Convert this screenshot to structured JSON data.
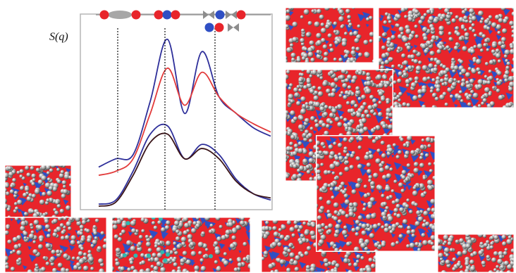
{
  "plot": {
    "ylabel": "S(q)"
  },
  "colors": {
    "red_series": "#e23a3a",
    "blue_series": "#2e2f9a",
    "dark_series": "#3a1418",
    "oxygen": "#e8252b",
    "cation": "#2f4fc4",
    "organic": "#a7a7a7",
    "dopant": "#2fb9b0",
    "frame": "#b5b5b5"
  },
  "chart_data": {
    "type": "line",
    "ylabel": "S(q)",
    "grid": false,
    "peak_markers": [
      "ion-pair-chain",
      "cation-cluster",
      "anion-cation-alternation"
    ],
    "series": [
      {
        "color": "#2e2f9a",
        "x": [
          0,
          1,
          2,
          3,
          4,
          5,
          6,
          7,
          8,
          9,
          10
        ],
        "values": [
          2.0,
          2.4,
          2.6,
          5.2,
          8.2,
          4.6,
          7.6,
          5.4,
          4.6,
          3.9,
          3.5
        ]
      },
      {
        "color": "#e23a3a",
        "x": [
          0,
          1,
          2,
          3,
          4,
          5,
          6,
          7,
          8,
          9,
          10
        ],
        "values": [
          1.6,
          1.8,
          2.4,
          4.6,
          6.8,
          5.0,
          6.6,
          5.4,
          4.6,
          4.1,
          3.7
        ]
      },
      {
        "color": "#2e2f9a",
        "x": [
          0,
          1,
          2,
          3,
          4,
          5,
          6,
          7,
          8,
          9,
          10
        ],
        "values": [
          0.2,
          0.4,
          1.8,
          3.6,
          4.0,
          2.4,
          3.1,
          2.6,
          1.4,
          0.7,
          0.4
        ]
      },
      {
        "color": "#3a1418",
        "x": [
          0,
          1,
          2,
          3,
          4,
          5,
          6,
          7,
          8,
          9,
          10
        ],
        "values": [
          0.1,
          0.3,
          1.6,
          3.2,
          3.6,
          2.4,
          2.9,
          2.4,
          1.3,
          0.7,
          0.5
        ]
      }
    ]
  },
  "snapshots": [
    {
      "name": "snapshot-top-left",
      "seed": 11,
      "organic": 0.35,
      "blue": 0.15
    },
    {
      "name": "snapshot-top-right",
      "seed": 23,
      "organic": 0.45,
      "blue": 0.35
    },
    {
      "name": "snapshot-middle-left",
      "seed": 37,
      "organic": 0.55,
      "blue": 0.25
    },
    {
      "name": "snapshot-center",
      "seed": 41,
      "organic": 0.35,
      "blue": 0.45
    },
    {
      "name": "snapshot-bottom-right",
      "seed": 53,
      "organic": 0.6,
      "blue": 0.2
    },
    {
      "name": "snapshot-left-tall",
      "seed": 67,
      "organic": 0.45,
      "blue": 0.35
    },
    {
      "name": "snapshot-bottom-left",
      "seed": 71,
      "organic": 0.4,
      "blue": 0.25
    },
    {
      "name": "snapshot-bottom-mid",
      "seed": 83,
      "organic": 0.4,
      "blue": 0.3
    },
    {
      "name": "snapshot-bottom-lower",
      "seed": 97,
      "organic": 0.35,
      "blue": 0.35
    }
  ]
}
